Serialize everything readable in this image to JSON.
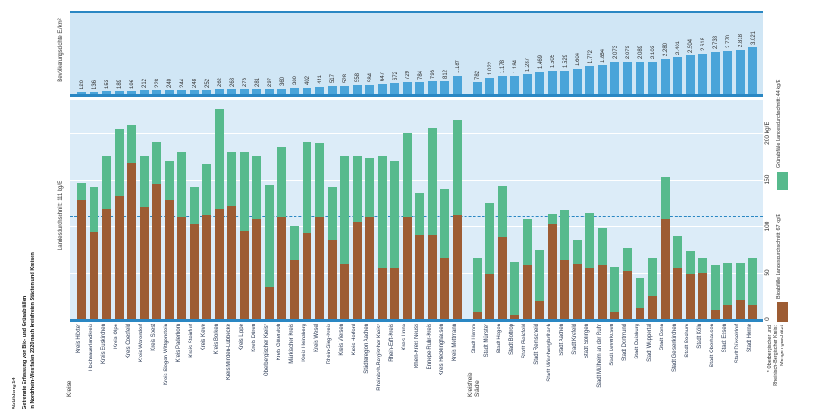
{
  "title": {
    "figure_label": "Abbildung 14",
    "line1": "Getrennte Erfassung von Bio- und Grünabfällen",
    "line2": "in Nordrhein-Westfalen 2020 nach kreisfreien Städten und Kreisen"
  },
  "axes": {
    "top_axis_label": "Bevölkerungsdichte E./km²",
    "y_ticks": [
      "0",
      "50",
      "100",
      "150",
      "200 kg/E"
    ],
    "avg_line_label": "Landesdurchschnitt: 111 kg/E"
  },
  "legend": {
    "gruen_label": "Grünabfälle Landesdurchschnitt: 44 kg/E",
    "bio_label": "Bioabfälle Landesdurchschnitt: 67 kg/E"
  },
  "groups": {
    "left": "Kreise",
    "right_line1": "Kreisfreie",
    "right_line2": "Städte"
  },
  "footnote": [
    "* Oberbergischer und",
    "Rheinisch-Bergischer Kreis:",
    "Mengen geschätzt"
  ],
  "colors": {
    "density_bar": "#4aa4d9",
    "bio": "#9d5c33",
    "gruen": "#57ba8d",
    "axis_blue": "#2a87c3",
    "panel_top": "#d0e6f5",
    "panel_main": "#dcecf8"
  },
  "chart_data": {
    "type": "bar",
    "subtype": "stacked-bars-with-density-strip",
    "title": "Getrennte Erfassung von Bio- und Grünabfällen in Nordrhein-Westfalen 2020 nach kreisfreien Städten und Kreisen",
    "ylabel": "kg/E",
    "ylim": [
      0,
      235
    ],
    "gridlines": [
      50,
      100,
      150,
      200
    ],
    "average_line": 111,
    "group_split_index": 31,
    "categories": [
      "Kreis Höxter",
      "Hochsauerlandkreis",
      "Kreis Euskirchen",
      "Kreis Olpe",
      "Kreis Coesfeld",
      "Kreis Warendorf",
      "Kreis Soest",
      "Kreis Siegen-Wittgenstein",
      "Kreis Paderborn",
      "Kreis Steinfurt",
      "Kreis Kleve",
      "Kreis Borken",
      "Kreis Minden-Lübbecke",
      "Kreis Lippe",
      "Kreis Düren",
      "Oberbergischer Kreis*",
      "Kreis Gütersloh",
      "Märkischer Kreis",
      "Kreis Heinsberg",
      "Kreis Wesel",
      "Rhein-Sieg-Kreis",
      "Kreis Viersen",
      "Kreis Herford",
      "Städteregion Aachen",
      "Rheinisch-Bergischer Kreis*",
      "Rhein-Erft-Kreis",
      "Kreis Unna",
      "Rhein-Kreis Neuss",
      "Ennepe-Ruhr-Kreis",
      "Kreis Recklinghausen",
      "Kreis Mettmann",
      "Stadt Hamm",
      "Stadt Münster",
      "Stadt Hagen",
      "Stadt Bottrop",
      "Stadt Bielefeld",
      "Stadt Remscheid",
      "Stadt Mönchengladbach",
      "Stadt Aachen",
      "Stadt Krefeld",
      "Stadt Solingen",
      "Stadt Mülheim an der Ruhr",
      "Stadt Leverkusen",
      "Stadt Dortmund",
      "Stadt Duisburg",
      "Stadt Wuppertal",
      "Stadt Bonn",
      "Stadt Gelsenkirchen",
      "Stadt Bochum",
      "Stadt Köln",
      "Stadt Oberhausen",
      "Stadt Essen",
      "Stadt Düsseldorf",
      "Stadt Herne"
    ],
    "density_strip": {
      "label": "Bevölkerungsdichte E./km²",
      "values": [
        120,
        136,
        153,
        189,
        196,
        212,
        228,
        240,
        244,
        248,
        252,
        262,
        268,
        278,
        281,
        297,
        360,
        380,
        402,
        441,
        517,
        528,
        558,
        584,
        647,
        672,
        729,
        784,
        793,
        812,
        1187,
        782,
        1022,
        1178,
        1184,
        1287,
        1469,
        1505,
        1529,
        1604,
        1772,
        1854,
        2073,
        2079,
        2089,
        2103,
        2280,
        2401,
        2504,
        2618,
        2738,
        2770,
        2818,
        3021
      ]
    },
    "series": [
      {
        "name": "Bioabfälle",
        "color": "#9d5c33",
        "state_average": 67,
        "values": [
          128,
          93,
          118,
          133,
          168,
          120,
          145,
          128,
          110,
          102,
          112,
          118,
          122,
          95,
          108,
          35,
          110,
          63,
          92,
          110,
          85,
          60,
          105,
          110,
          55,
          55,
          110,
          90,
          90,
          65,
          112,
          8,
          48,
          88,
          5,
          59,
          19,
          102,
          63,
          60,
          55,
          58,
          8,
          52,
          12,
          25,
          108,
          55,
          48,
          50,
          10,
          15,
          20,
          15
        ]
      },
      {
        "name": "Grünabfälle",
        "color": "#57ba8d",
        "state_average": 44,
        "values": [
          18,
          49,
          57,
          72,
          40,
          55,
          45,
          42,
          70,
          40,
          55,
          108,
          58,
          85,
          68,
          110,
          75,
          37,
          98,
          80,
          58,
          115,
          70,
          63,
          120,
          115,
          90,
          45,
          115,
          75,
          103,
          58,
          77,
          55,
          57,
          49,
          55,
          12,
          54,
          25,
          60,
          40,
          48,
          25,
          33,
          40,
          45,
          35,
          25,
          15,
          48,
          45,
          40,
          50
        ]
      }
    ]
  }
}
